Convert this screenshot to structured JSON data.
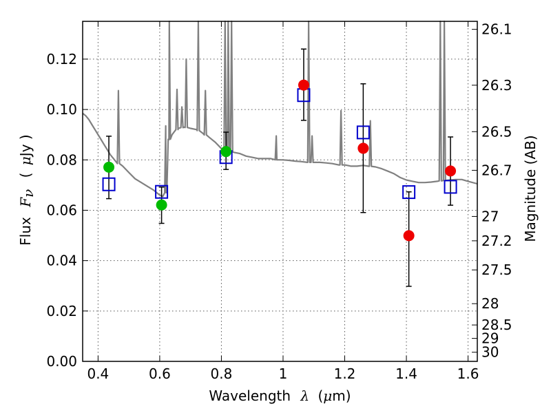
{
  "chart_data": {
    "type": "scatter",
    "title": "",
    "xlabel": {
      "prefix": "Wavelength",
      "symbol": "λ",
      "unit_open": "(",
      "unit_mu": "μ",
      "unit_rest": "m)"
    },
    "ylabel": {
      "prefix": "Flux",
      "symbol_main": "F",
      "symbol_sub": "ν",
      "unit_open": "(",
      "unit_mu": "μ",
      "unit_rest": "Jy )"
    },
    "y2label": "Magnitude (AB)",
    "xlim": [
      0.35,
      1.63
    ],
    "ylim": [
      0.0,
      0.135
    ],
    "grid": true,
    "x_ticks": [
      {
        "value": 0.4,
        "label": "0.4"
      },
      {
        "value": 0.6,
        "label": "0.6"
      },
      {
        "value": 0.8,
        "label": "0.8"
      },
      {
        "value": 1.0,
        "label": "1"
      },
      {
        "value": 1.2,
        "label": "1.2"
      },
      {
        "value": 1.4,
        "label": "1.4"
      },
      {
        "value": 1.6,
        "label": "1.6"
      }
    ],
    "y_ticks": [
      {
        "value": 0.0,
        "label": "0.00"
      },
      {
        "value": 0.02,
        "label": "0.02"
      },
      {
        "value": 0.04,
        "label": "0.04"
      },
      {
        "value": 0.06,
        "label": "0.06"
      },
      {
        "value": 0.08,
        "label": "0.08"
      },
      {
        "value": 0.1,
        "label": "0.10"
      },
      {
        "value": 0.12,
        "label": "0.12"
      }
    ],
    "mag_ticks": [
      {
        "mag": 26.1,
        "label": "26.1"
      },
      {
        "mag": 26.3,
        "label": "26.3"
      },
      {
        "mag": 26.5,
        "label": "26.5"
      },
      {
        "mag": 26.7,
        "label": "26.7"
      },
      {
        "mag": 27.0,
        "label": "27"
      },
      {
        "mag": 27.2,
        "label": "27.2"
      },
      {
        "mag": 27.5,
        "label": "27.5"
      },
      {
        "mag": 28.0,
        "label": "28"
      },
      {
        "mag": 28.5,
        "label": "28.5"
      },
      {
        "mag": 29.0,
        "label": "29"
      },
      {
        "mag": 30.0,
        "label": "30"
      }
    ],
    "colors": {
      "spectrum": "#808080",
      "model_box": "#0000cc",
      "obs_green": "#00bb00",
      "obs_red": "#ee0000",
      "errorbar": "#000000",
      "grid": "#555555"
    },
    "spectrum": {
      "continuum": [
        [
          0.35,
          0.0985
        ],
        [
          0.36,
          0.0975
        ],
        [
          0.37,
          0.096
        ],
        [
          0.38,
          0.094
        ],
        [
          0.39,
          0.092
        ],
        [
          0.4,
          0.09
        ],
        [
          0.41,
          0.088
        ],
        [
          0.42,
          0.086
        ],
        [
          0.43,
          0.084
        ],
        [
          0.44,
          0.082
        ],
        [
          0.45,
          0.0805
        ],
        [
          0.46,
          0.079
        ],
        [
          0.48,
          0.0775
        ],
        [
          0.5,
          0.075
        ],
        [
          0.52,
          0.0725
        ],
        [
          0.54,
          0.071
        ],
        [
          0.56,
          0.0695
        ],
        [
          0.58,
          0.068
        ],
        [
          0.6,
          0.066
        ],
        [
          0.61,
          0.0655
        ],
        [
          0.62,
          0.067
        ],
        [
          0.63,
          0.088
        ],
        [
          0.64,
          0.09
        ],
        [
          0.66,
          0.0925
        ],
        [
          0.68,
          0.093
        ],
        [
          0.7,
          0.0925
        ],
        [
          0.72,
          0.092
        ],
        [
          0.74,
          0.0905
        ],
        [
          0.76,
          0.089
        ],
        [
          0.78,
          0.087
        ],
        [
          0.8,
          0.0845
        ],
        [
          0.82,
          0.0835
        ],
        [
          0.84,
          0.083
        ],
        [
          0.86,
          0.0825
        ],
        [
          0.88,
          0.0815
        ],
        [
          0.9,
          0.081
        ],
        [
          0.92,
          0.0805
        ],
        [
          0.94,
          0.0805
        ],
        [
          0.96,
          0.0805
        ],
        [
          0.98,
          0.08
        ],
        [
          1.0,
          0.08
        ],
        [
          1.02,
          0.0798
        ],
        [
          1.04,
          0.0795
        ],
        [
          1.06,
          0.0793
        ],
        [
          1.08,
          0.079
        ],
        [
          1.1,
          0.079
        ],
        [
          1.12,
          0.079
        ],
        [
          1.14,
          0.0788
        ],
        [
          1.16,
          0.0785
        ],
        [
          1.18,
          0.078
        ],
        [
          1.2,
          0.078
        ],
        [
          1.22,
          0.0775
        ],
        [
          1.24,
          0.0775
        ],
        [
          1.26,
          0.0778
        ],
        [
          1.28,
          0.0775
        ],
        [
          1.3,
          0.0772
        ],
        [
          1.32,
          0.0765
        ],
        [
          1.34,
          0.0755
        ],
        [
          1.36,
          0.0745
        ],
        [
          1.38,
          0.073
        ],
        [
          1.4,
          0.072
        ],
        [
          1.42,
          0.0715
        ],
        [
          1.44,
          0.071
        ],
        [
          1.46,
          0.071
        ],
        [
          1.48,
          0.0712
        ],
        [
          1.5,
          0.0715
        ],
        [
          1.52,
          0.0718
        ],
        [
          1.54,
          0.072
        ],
        [
          1.56,
          0.0722
        ],
        [
          1.58,
          0.0722
        ],
        [
          1.6,
          0.0715
        ],
        [
          1.63,
          0.0705
        ]
      ],
      "lines": [
        {
          "x": 0.466,
          "peak": 0.1075
        },
        {
          "x": 0.6195,
          "peak": 0.0935
        },
        {
          "x": 0.631,
          "peak": 0.135
        },
        {
          "x": 0.656,
          "peak": 0.108
        },
        {
          "x": 0.672,
          "peak": 0.101
        },
        {
          "x": 0.686,
          "peak": 0.12
        },
        {
          "x": 0.725,
          "peak": 0.135
        },
        {
          "x": 0.748,
          "peak": 0.1075
        },
        {
          "x": 0.812,
          "peak": 0.135
        },
        {
          "x": 0.822,
          "peak": 0.135
        },
        {
          "x": 0.833,
          "peak": 0.135
        },
        {
          "x": 0.978,
          "peak": 0.0895
        },
        {
          "x": 1.083,
          "peak": 0.135
        },
        {
          "x": 1.094,
          "peak": 0.0895
        },
        {
          "x": 1.188,
          "peak": 0.0995
        },
        {
          "x": 1.283,
          "peak": 0.0955
        },
        {
          "x": 1.51,
          "peak": 0.135
        },
        {
          "x": 1.523,
          "peak": 0.135
        }
      ]
    },
    "series": [
      {
        "marker": "open-square",
        "x": [
          0.435,
          0.606,
          0.815,
          1.067,
          1.26,
          1.408,
          1.543
        ],
        "y": [
          0.0703,
          0.0673,
          0.0811,
          0.1057,
          0.0909,
          0.0672,
          0.0693
        ]
      },
      {
        "marker": "filled-circle",
        "points": [
          {
            "x": 0.435,
            "y": 0.0771,
            "yerr": [
              0.0646,
              0.0894
            ],
            "color": "green"
          },
          {
            "x": 0.606,
            "y": 0.0621,
            "yerr": [
              0.0548,
              0.0692
            ],
            "color": "green"
          },
          {
            "x": 0.815,
            "y": 0.0833,
            "yerr": [
              0.0762,
              0.091
            ],
            "color": "green"
          },
          {
            "x": 1.067,
            "y": 0.1097,
            "yerr": [
              0.0957,
              0.124
            ],
            "color": "red"
          },
          {
            "x": 1.26,
            "y": 0.0846,
            "yerr": [
              0.0591,
              0.1102
            ],
            "color": "red"
          },
          {
            "x": 1.408,
            "y": 0.0499,
            "yerr": [
              0.0298,
              0.0673
            ],
            "color": "red"
          },
          {
            "x": 1.543,
            "y": 0.0756,
            "yerr": [
              0.062,
              0.0891
            ],
            "color": "red"
          }
        ]
      }
    ]
  }
}
